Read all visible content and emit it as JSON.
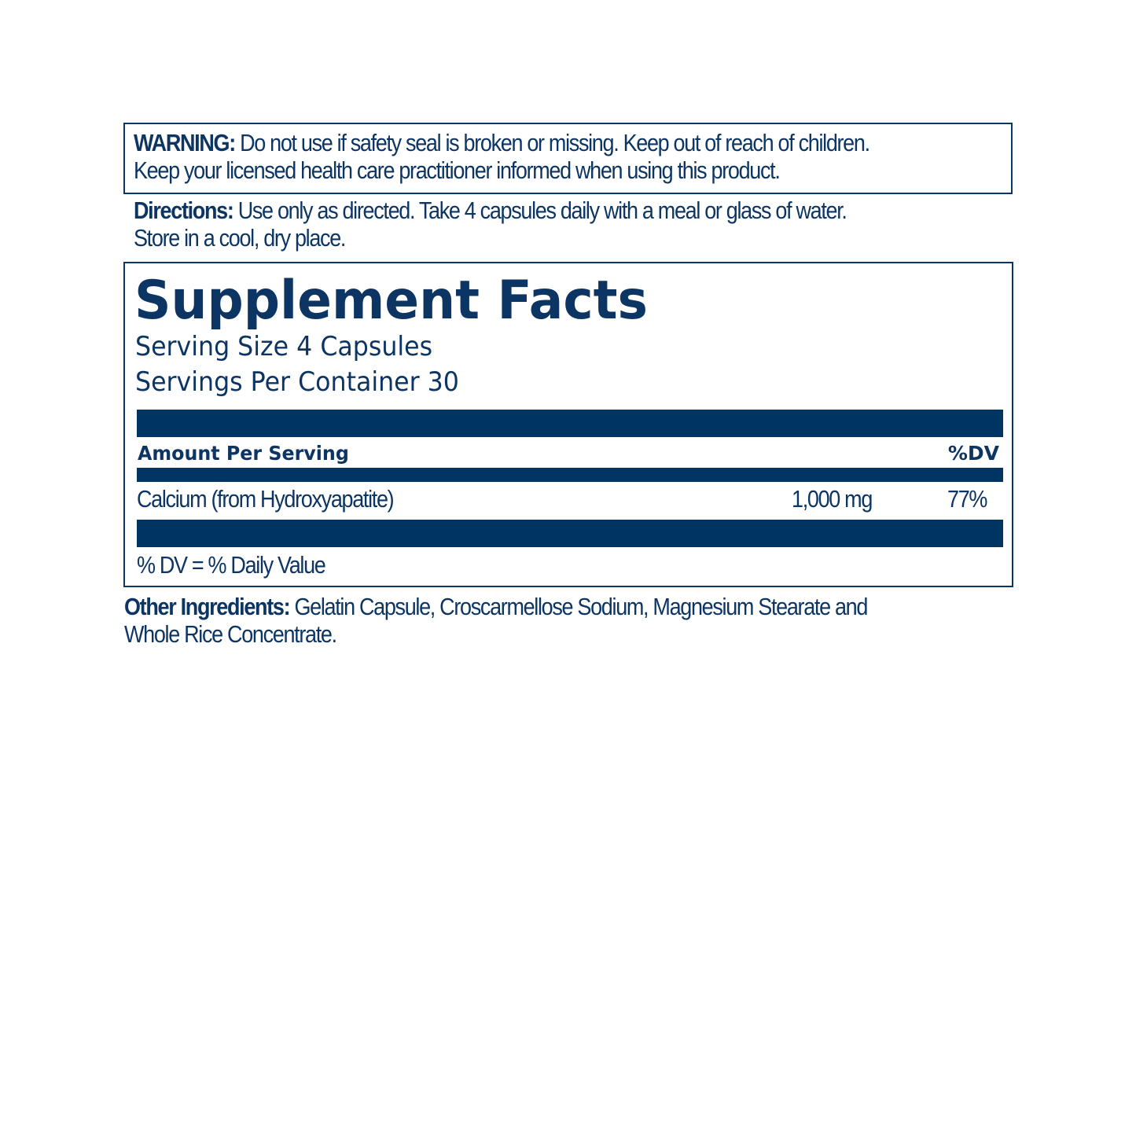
{
  "warning": {
    "label": "WARNING:",
    "line1": " Do not use if safety seal is broken or missing. Keep out of reach of children.",
    "line2": "Keep your licensed health care practitioner informed when using this product."
  },
  "directions": {
    "label": "Directions:",
    "line1": " Use only as directed. Take 4 capsules daily with a meal or glass of water.",
    "line2": "Store in a cool, dry place."
  },
  "facts": {
    "title": "Supplement Facts",
    "serving_size": "Serving Size 4 Capsules",
    "servings_per_container": "Servings Per Container 30",
    "amount_header": "Amount Per Serving",
    "dv_header": "%DV",
    "rows": [
      {
        "name": "Calcium (from Hydroxyapatite)",
        "amount": "1,000 mg",
        "dv": "77%"
      }
    ],
    "footnote": "% DV = % Daily Value"
  },
  "other": {
    "label": "Other Ingredients:",
    "line1": " Gelatin Capsule, Croscarmellose Sodium, Magnesium Stearate and",
    "line2": "Whole Rice Concentrate."
  },
  "colors": {
    "text": "#0d3563",
    "bar": "#003462"
  }
}
